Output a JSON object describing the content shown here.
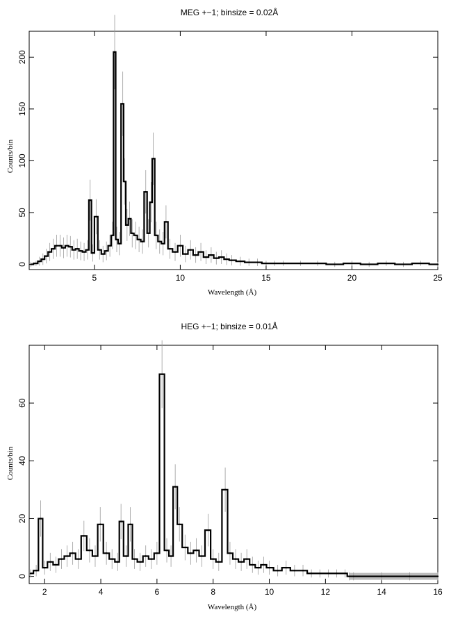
{
  "chart_data": [
    {
      "type": "line",
      "title": "MEG +−1; binsize = 0.02Å",
      "xlabel": "Wavelength (Å)",
      "ylabel": "Counts/bin",
      "xlim": [
        1.2,
        25
      ],
      "ylim": [
        -5,
        225
      ],
      "xticks": [
        5,
        10,
        15,
        20,
        25
      ],
      "xtick_labels": [
        "5",
        "10",
        "15",
        "20",
        "25"
      ],
      "yticks": [
        0,
        50,
        100,
        150,
        200
      ],
      "ytick_labels": [
        "0",
        "50",
        "100",
        "150",
        "200"
      ],
      "grid": false,
      "series": [
        {
          "x": [
            1.3,
            1.6,
            1.8,
            2.0,
            2.2,
            2.4,
            2.6,
            2.8,
            3.0,
            3.2,
            3.4,
            3.6,
            3.8,
            4.0,
            4.2,
            4.4,
            4.6,
            4.75,
            4.9,
            5.1,
            5.3,
            5.5,
            5.7,
            5.9,
            6.05,
            6.18,
            6.3,
            6.45,
            6.65,
            6.75,
            6.9,
            7.05,
            7.2,
            7.4,
            7.6,
            7.8,
            7.99,
            8.15,
            8.3,
            8.43,
            8.6,
            8.8,
            9.0,
            9.17,
            9.4,
            9.7,
            10.0,
            10.3,
            10.6,
            10.9,
            11.2,
            11.5,
            11.8,
            12.1,
            12.4,
            12.7,
            13.0,
            13.5,
            14.0,
            14.5,
            15.0,
            15.5,
            16.0,
            17.0,
            18.0,
            19.0,
            20.0,
            21.0,
            22.0,
            23.0,
            24.0,
            25.0
          ],
          "y": [
            0,
            1,
            3,
            5,
            8,
            12,
            15,
            18,
            18,
            16,
            18,
            17,
            14,
            15,
            13,
            12,
            14,
            62,
            11,
            46,
            14,
            10,
            13,
            18,
            28,
            205,
            24,
            20,
            155,
            80,
            38,
            44,
            30,
            28,
            24,
            22,
            70,
            30,
            60,
            102,
            28,
            22,
            20,
            41,
            15,
            12,
            18,
            10,
            14,
            9,
            12,
            7,
            9,
            6,
            7,
            5,
            4,
            3,
            2,
            2,
            1,
            1,
            1,
            1,
            1,
            0,
            1,
            0,
            1,
            0,
            1,
            0
          ]
        }
      ],
      "error_bar_scale": 2.5
    },
    {
      "type": "line",
      "title": "HEG +−1; binsize = 0.01Å",
      "xlabel": "Wavelength (Å)",
      "ylabel": "Counts/bin",
      "xlim": [
        1.45,
        16
      ],
      "ylim": [
        -2.5,
        80
      ],
      "xticks": [
        2,
        4,
        6,
        8,
        10,
        12,
        14,
        16
      ],
      "xtick_labels": [
        "2",
        "4",
        "6",
        "8",
        "10",
        "12",
        "14",
        "16"
      ],
      "yticks": [
        0,
        20,
        40,
        60
      ],
      "ytick_labels": [
        "0",
        "20",
        "40",
        "60"
      ],
      "grid": false,
      "series": [
        {
          "x": [
            1.5,
            1.7,
            1.86,
            2.0,
            2.2,
            2.4,
            2.6,
            2.8,
            3.0,
            3.2,
            3.4,
            3.6,
            3.8,
            3.98,
            4.2,
            4.4,
            4.6,
            4.72,
            4.9,
            5.05,
            5.2,
            5.4,
            5.6,
            5.8,
            6.0,
            6.18,
            6.35,
            6.5,
            6.65,
            6.8,
            7.0,
            7.2,
            7.4,
            7.6,
            7.82,
            8.0,
            8.2,
            8.43,
            8.6,
            8.8,
            9.0,
            9.2,
            9.4,
            9.6,
            9.8,
            10.0,
            10.3,
            10.6,
            10.9,
            11.2,
            11.5,
            11.8,
            12.1,
            12.4,
            12.7,
            12.85,
            13.0,
            14.0,
            15.0,
            16.0
          ],
          "y": [
            1,
            2,
            20,
            3,
            5,
            4,
            6,
            7,
            8,
            6,
            14,
            9,
            7,
            18,
            8,
            6,
            5,
            19,
            7,
            18,
            6,
            5,
            7,
            6,
            8,
            70,
            9,
            7,
            31,
            18,
            10,
            8,
            9,
            7,
            16,
            6,
            5,
            30,
            8,
            6,
            5,
            6,
            4,
            3,
            4,
            3,
            2,
            3,
            2,
            2,
            1,
            1,
            1,
            1,
            1,
            0,
            0,
            0,
            0,
            0
          ]
        }
      ],
      "error_bar_scale": 1.4,
      "uncertainty_band_from": 12.85
    }
  ]
}
